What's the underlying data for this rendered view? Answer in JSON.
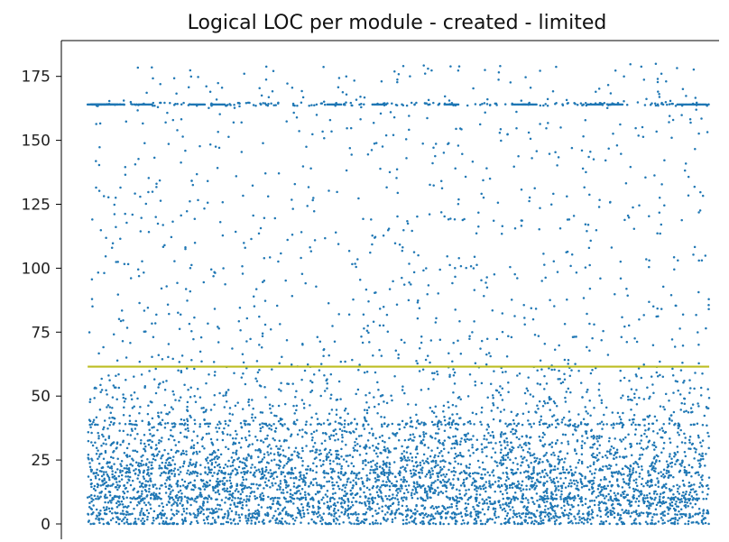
{
  "chart_data": {
    "type": "scatter",
    "title": "Logical LOC per module - created - limited",
    "xlabel": "",
    "ylabel": "",
    "yticks": [
      0,
      25,
      50,
      75,
      100,
      125,
      150,
      175
    ],
    "ylim": [
      -6,
      189
    ],
    "xlim": [
      0,
      1
    ],
    "x_tick_labels_visible": false,
    "grid": false,
    "legend": "none",
    "reference_line": {
      "y": 61.5,
      "color": "#bcbd22"
    },
    "series": [
      {
        "color": "#1f77b4",
        "point_count_approx": 6000,
        "distribution": "dense below 60, sparse 60-180, horizontal bands at 0, 4, 10, 15, 20, 39 and 164",
        "y_min": 0,
        "y_max": 180
      }
    ]
  }
}
